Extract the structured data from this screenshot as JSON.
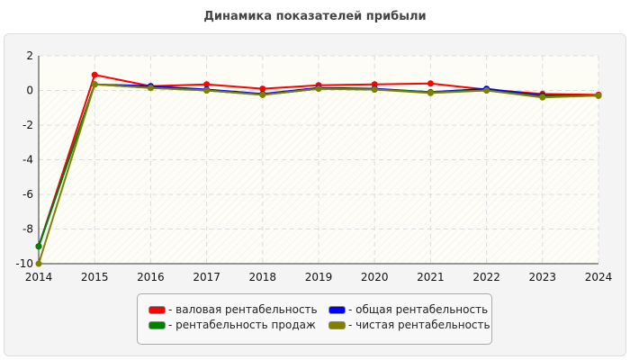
{
  "chart_data": {
    "type": "line",
    "title": "Динамика показателей прибыли",
    "x": [
      2014,
      2015,
      2016,
      2017,
      2018,
      2019,
      2020,
      2021,
      2022,
      2023,
      2024
    ],
    "ylim": [
      -10,
      2
    ],
    "yticks": [
      2,
      0,
      -2,
      -4,
      -6,
      -8,
      -10
    ],
    "grid": true,
    "legend_position": "bottom",
    "series": [
      {
        "name": "- валовая рентабельность",
        "color": "#ff0000",
        "values": [
          -9,
          0.9,
          0.25,
          0.35,
          0.1,
          0.3,
          0.35,
          0.4,
          0.05,
          -0.2,
          -0.25
        ]
      },
      {
        "name": "- общая рентабельность",
        "color": "#0000ff",
        "values": [
          -9,
          0.35,
          0.25,
          0.05,
          -0.2,
          0.15,
          0.1,
          -0.1,
          0.1,
          -0.3,
          -0.3
        ]
      },
      {
        "name": "- рентабельность продаж",
        "color": "#008000",
        "values": [
          -9,
          0.35,
          0.15,
          0.0,
          -0.25,
          0.1,
          0.05,
          -0.1,
          0.0,
          -0.35,
          -0.3
        ]
      },
      {
        "name": "- чистая рентабельность",
        "color": "#808000",
        "values": [
          -10,
          0.35,
          0.15,
          0.0,
          -0.25,
          0.1,
          0.05,
          -0.15,
          0.0,
          -0.4,
          -0.3
        ]
      }
    ]
  }
}
